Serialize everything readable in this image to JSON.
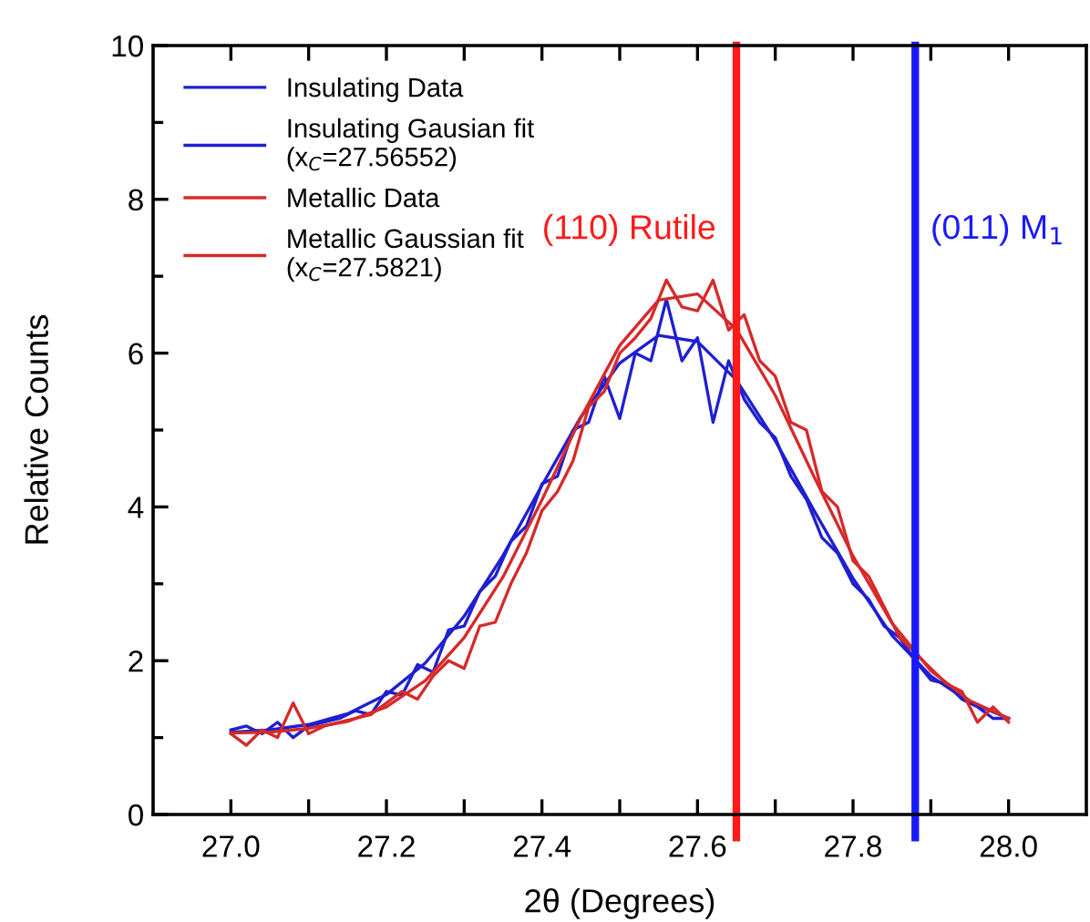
{
  "chart_data": {
    "type": "line",
    "xlabel": "2θ (Degrees)",
    "ylabel": "Relative Counts",
    "xlim": [
      26.9,
      28.1
    ],
    "ylim": [
      0,
      10
    ],
    "xticks": [
      {
        "value": 27.0,
        "label": "27.0"
      },
      {
        "value": 27.1,
        "label": null
      },
      {
        "value": 27.2,
        "label": "27.2"
      },
      {
        "value": 27.3,
        "label": null
      },
      {
        "value": 27.4,
        "label": "27.4"
      },
      {
        "value": 27.5,
        "label": null
      },
      {
        "value": 27.6,
        "label": "27.6"
      },
      {
        "value": 27.7,
        "label": null
      },
      {
        "value": 27.8,
        "label": "27.8"
      },
      {
        "value": 27.9,
        "label": null
      },
      {
        "value": 28.0,
        "label": "28.0"
      }
    ],
    "yticks": [
      0,
      {
        "value": 1,
        "label": null
      },
      2,
      {
        "value": 3,
        "label": null
      },
      4,
      {
        "value": 5,
        "label": null
      },
      6,
      {
        "value": 7,
        "label": null
      },
      8,
      {
        "value": 9,
        "label": null
      },
      10
    ],
    "grid": false,
    "legend": "top left",
    "marker": "none",
    "line_style": "solid",
    "series": [
      {
        "name": "Insulating Data",
        "color": "#1f1fd0",
        "x": [
          27.0,
          27.02,
          27.04,
          27.06,
          27.08,
          27.1,
          27.12,
          27.14,
          27.16,
          27.18,
          27.2,
          27.22,
          27.24,
          27.26,
          27.28,
          27.3,
          27.32,
          27.34,
          27.36,
          27.38,
          27.4,
          27.42,
          27.44,
          27.46,
          27.48,
          27.5,
          27.52,
          27.54,
          27.56,
          27.58,
          27.6,
          27.62,
          27.64,
          27.66,
          27.68,
          27.7,
          27.72,
          27.74,
          27.76,
          27.78,
          27.8,
          27.82,
          27.84,
          27.86,
          27.88,
          27.9,
          27.92,
          27.94,
          27.96,
          27.98,
          28.0
        ],
        "values": [
          1.1,
          1.15,
          1.05,
          1.2,
          1.0,
          1.15,
          1.2,
          1.25,
          1.35,
          1.3,
          1.6,
          1.55,
          1.95,
          1.85,
          2.4,
          2.45,
          2.9,
          3.1,
          3.55,
          3.75,
          4.3,
          4.4,
          5.0,
          5.1,
          5.7,
          5.15,
          6.0,
          5.9,
          6.7,
          5.9,
          6.2,
          5.1,
          5.9,
          5.4,
          5.1,
          4.9,
          4.4,
          4.1,
          3.6,
          3.4,
          3.0,
          2.8,
          2.45,
          2.3,
          2.0,
          1.75,
          1.7,
          1.5,
          1.4,
          1.25,
          1.25
        ]
      },
      {
        "name": "Insulating Gausian fit\n(x$_{C}$=27.56552)",
        "color": "#1f1fd0",
        "x": [
          27.0,
          27.05,
          27.1,
          27.15,
          27.2,
          27.25,
          27.3,
          27.35,
          27.4,
          27.45,
          27.5,
          27.55,
          27.6,
          27.65,
          27.7,
          27.75,
          27.8,
          27.85,
          27.9,
          27.95,
          28.0
        ],
        "values": [
          1.07,
          1.1,
          1.17,
          1.31,
          1.56,
          1.97,
          2.58,
          3.37,
          4.28,
          5.17,
          5.87,
          6.23,
          6.15,
          5.65,
          4.86,
          3.95,
          3.07,
          2.33,
          1.8,
          1.46,
          1.25
        ]
      },
      {
        "name": "Metallic Data",
        "color": "#d62a2a",
        "x": [
          27.0,
          27.02,
          27.04,
          27.06,
          27.08,
          27.1,
          27.12,
          27.14,
          27.16,
          27.18,
          27.2,
          27.22,
          27.24,
          27.26,
          27.28,
          27.3,
          27.32,
          27.34,
          27.36,
          27.38,
          27.4,
          27.42,
          27.44,
          27.46,
          27.48,
          27.5,
          27.52,
          27.54,
          27.56,
          27.58,
          27.6,
          27.62,
          27.64,
          27.66,
          27.68,
          27.7,
          27.72,
          27.74,
          27.76,
          27.78,
          27.8,
          27.82,
          27.84,
          27.86,
          27.88,
          27.9,
          27.92,
          27.94,
          27.96,
          27.98,
          28.0
        ],
        "values": [
          1.05,
          0.9,
          1.1,
          1.0,
          1.45,
          1.05,
          1.15,
          1.2,
          1.25,
          1.3,
          1.45,
          1.6,
          1.5,
          1.8,
          2.0,
          1.9,
          2.45,
          2.5,
          3.0,
          3.4,
          3.95,
          4.2,
          4.6,
          5.3,
          5.5,
          6.0,
          6.2,
          6.45,
          6.95,
          6.6,
          6.55,
          6.95,
          6.3,
          6.5,
          5.9,
          5.7,
          5.1,
          5.0,
          4.2,
          4.0,
          3.3,
          3.1,
          2.7,
          2.3,
          2.1,
          1.9,
          1.7,
          1.6,
          1.2,
          1.4,
          1.2
        ]
      },
      {
        "name": "Metallic Gaussian fit\n(x$_{C}$=27.5821)",
        "color": "#d62a2a",
        "x": [
          27.0,
          27.05,
          27.1,
          27.15,
          27.2,
          27.25,
          27.3,
          27.35,
          27.4,
          27.45,
          27.5,
          27.55,
          27.6,
          27.65,
          27.7,
          27.75,
          27.8,
          27.85,
          27.9,
          27.95,
          28.0
        ],
        "values": [
          1.06,
          1.07,
          1.12,
          1.21,
          1.4,
          1.74,
          2.3,
          3.09,
          4.09,
          5.16,
          6.1,
          6.69,
          6.77,
          6.31,
          5.45,
          4.39,
          3.36,
          2.49,
          1.87,
          1.48,
          1.25
        ]
      }
    ],
    "ref_lines": [
      {
        "axis": "x",
        "value": 27.65,
        "label": "(110) Rutile",
        "color": "#ff1a1a",
        "line_style": "solid"
      },
      {
        "axis": "x",
        "value": 27.88,
        "label": "(011) M$_{1}$",
        "color": "#1a1aff",
        "line_style": "solid"
      }
    ]
  }
}
